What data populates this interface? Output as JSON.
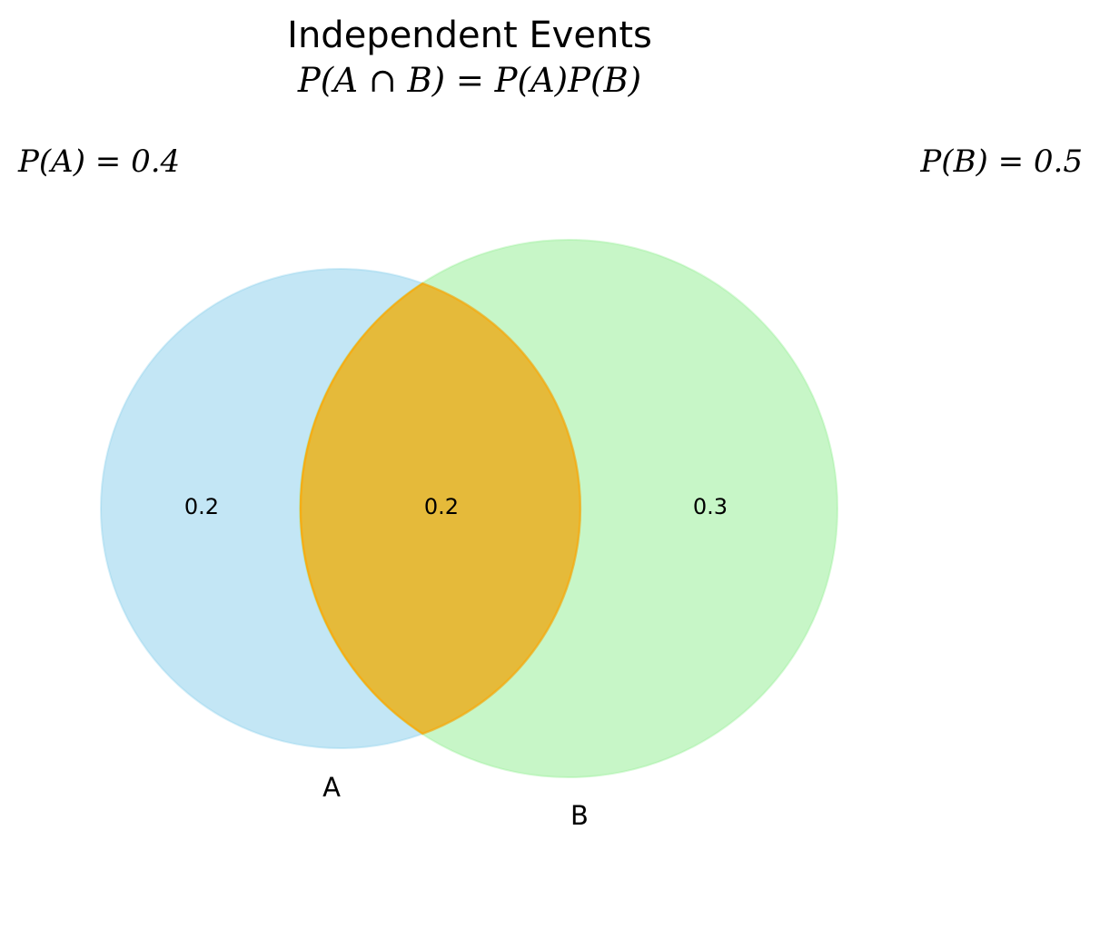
{
  "title": "Independent Events",
  "formula": "P(A ∩ B) = P(A)P(B)",
  "prob_a_label": "P(A) = 0.4",
  "prob_b_label": "P(B) = 0.5",
  "sets": {
    "a": {
      "label": "A",
      "color": "#87CEEB"
    },
    "b": {
      "label": "B",
      "color": "#90EE90"
    },
    "intersection": {
      "color": "#FFA500"
    }
  },
  "regions": {
    "a_only": "0.2",
    "intersection": "0.2",
    "b_only": "0.3"
  }
}
